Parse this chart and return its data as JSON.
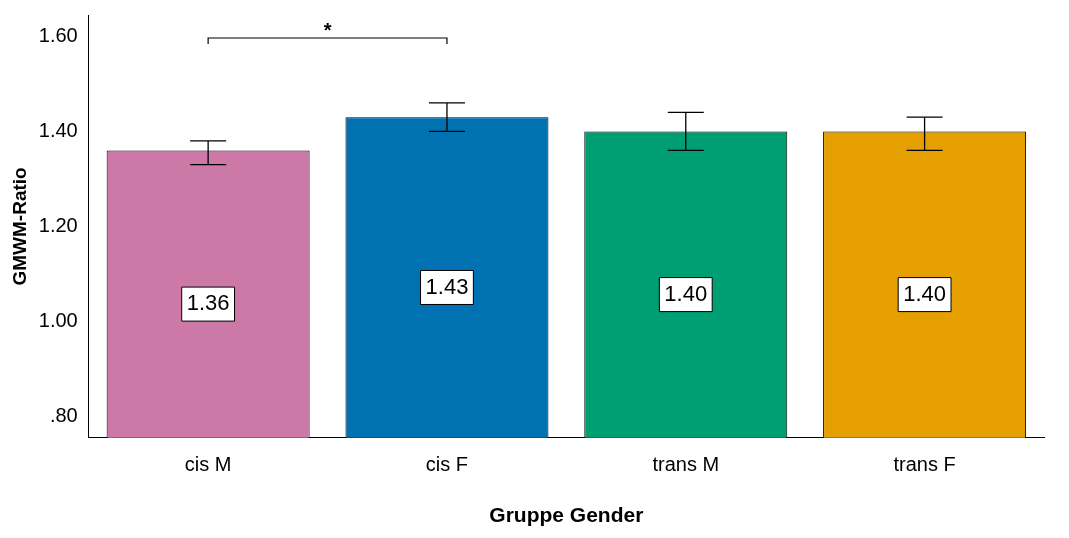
{
  "chart_data": {
    "type": "bar",
    "xlabel": "Gruppe Gender",
    "ylabel": "GMWM-Ratio",
    "categories": [
      "cis M",
      "cis F",
      "trans M",
      "trans F"
    ],
    "values": [
      1.36,
      1.43,
      1.4,
      1.4
    ],
    "colors": [
      "#cc79a7",
      "#0072b2",
      "#009e73",
      "#e69f00"
    ],
    "errors": [
      [
        1.33,
        1.38
      ],
      [
        1.4,
        1.46
      ],
      [
        1.36,
        1.44
      ],
      [
        1.36,
        1.43
      ]
    ],
    "ylim": [
      0.755,
      1.645
    ],
    "yticks": [
      {
        "value": 0.8,
        "label": ".80"
      },
      {
        "value": 1.0,
        "label": "1.00"
      },
      {
        "value": 1.2,
        "label": "1.20"
      },
      {
        "value": 1.4,
        "label": "1.40"
      },
      {
        "value": 1.6,
        "label": "1.60"
      }
    ],
    "value_labels": [
      "1.36",
      "1.43",
      "1.40",
      "1.40"
    ],
    "grid": false,
    "legend": false,
    "annotations": [
      "*"
    ]
  }
}
